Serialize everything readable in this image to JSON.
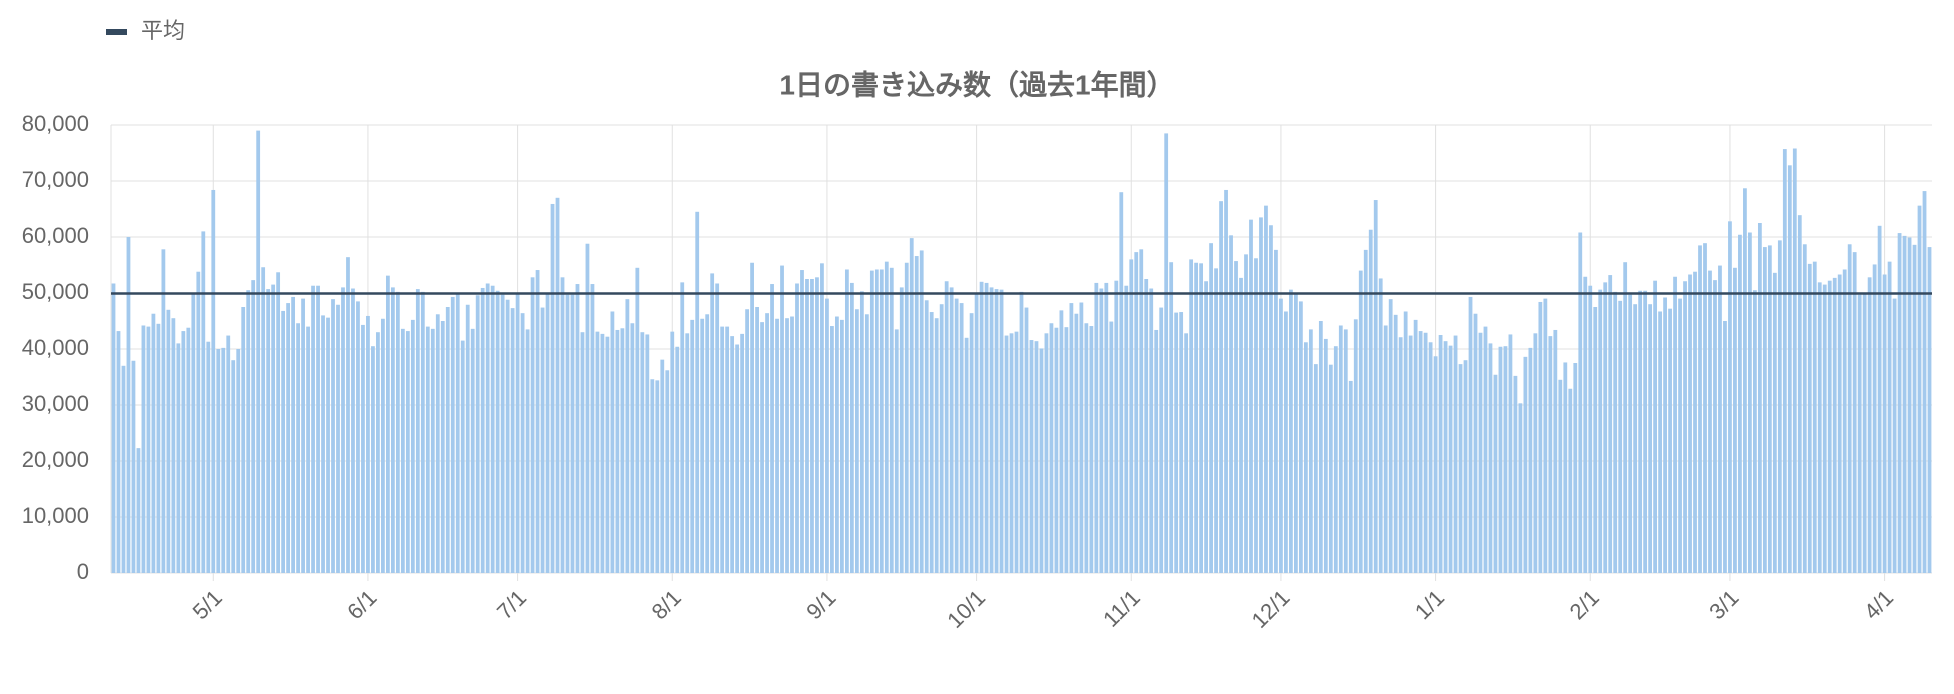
{
  "chart_data": {
    "type": "bar",
    "title": "1日の書き込み数（過去1年間）",
    "categories": [
      null,
      null,
      null,
      null,
      null,
      null,
      null,
      null,
      null,
      null,
      null,
      null,
      null,
      null,
      null,
      null,
      null,
      null,
      null,
      null,
      "5/1",
      null,
      null,
      null,
      null,
      null,
      null,
      null,
      null,
      null,
      null,
      null,
      null,
      null,
      null,
      null,
      null,
      null,
      null,
      null,
      null,
      null,
      null,
      null,
      null,
      null,
      null,
      null,
      null,
      null,
      null,
      "6/1",
      null,
      null,
      null,
      null,
      null,
      null,
      null,
      null,
      null,
      null,
      null,
      null,
      null,
      null,
      null,
      null,
      null,
      null,
      null,
      null,
      null,
      null,
      null,
      null,
      null,
      null,
      null,
      null,
      null,
      "7/1",
      null,
      null,
      null,
      null,
      null,
      null,
      null,
      null,
      null,
      null,
      null,
      null,
      null,
      null,
      null,
      null,
      null,
      null,
      null,
      null,
      null,
      null,
      null,
      null,
      null,
      null,
      null,
      null,
      null,
      null,
      "8/1",
      null,
      null,
      null,
      null,
      null,
      null,
      null,
      null,
      null,
      null,
      null,
      null,
      null,
      null,
      null,
      null,
      null,
      null,
      null,
      null,
      null,
      null,
      null,
      null,
      null,
      null,
      null,
      null,
      null,
      null,
      "9/1",
      null,
      null,
      null,
      null,
      null,
      null,
      null,
      null,
      null,
      null,
      null,
      null,
      null,
      null,
      null,
      null,
      null,
      null,
      null,
      null,
      null,
      null,
      null,
      null,
      null,
      null,
      null,
      null,
      null,
      "10/1",
      null,
      null,
      null,
      null,
      null,
      null,
      null,
      null,
      null,
      null,
      null,
      null,
      null,
      null,
      null,
      null,
      null,
      null,
      null,
      null,
      null,
      null,
      null,
      null,
      null,
      null,
      null,
      null,
      null,
      null,
      "11/1",
      null,
      null,
      null,
      null,
      null,
      null,
      null,
      null,
      null,
      null,
      null,
      null,
      null,
      null,
      null,
      null,
      null,
      null,
      null,
      null,
      null,
      null,
      null,
      null,
      null,
      null,
      null,
      null,
      null,
      "12/1",
      null,
      null,
      null,
      null,
      null,
      null,
      null,
      null,
      null,
      null,
      null,
      null,
      null,
      null,
      null,
      null,
      null,
      null,
      null,
      null,
      null,
      null,
      null,
      null,
      null,
      null,
      null,
      null,
      null,
      null,
      "1/1",
      null,
      null,
      null,
      null,
      null,
      null,
      null,
      null,
      null,
      null,
      null,
      null,
      null,
      null,
      null,
      null,
      null,
      null,
      null,
      null,
      null,
      null,
      null,
      null,
      null,
      null,
      null,
      null,
      null,
      null,
      "2/1",
      null,
      null,
      null,
      null,
      null,
      null,
      null,
      null,
      null,
      null,
      null,
      null,
      null,
      null,
      null,
      null,
      null,
      null,
      null,
      null,
      null,
      null,
      null,
      null,
      null,
      null,
      null,
      "3/1",
      null,
      null,
      null,
      null,
      null,
      null,
      null,
      null,
      null,
      null,
      null,
      null,
      null,
      null,
      null,
      null,
      null,
      null,
      null,
      null,
      null,
      null,
      null,
      null,
      null,
      null,
      null,
      null,
      null,
      null,
      "4/1",
      null,
      null,
      null,
      null,
      null,
      null,
      null,
      null,
      null
    ],
    "values": [
      51700,
      43200,
      37000,
      60000,
      37900,
      22300,
      44200,
      44000,
      46300,
      44500,
      57800,
      47000,
      45500,
      41000,
      43200,
      43800,
      50000,
      53800,
      61000,
      41300,
      68400,
      40000,
      40200,
      42400,
      38000,
      40000,
      47500,
      50500,
      52300,
      79000,
      54600,
      50700,
      51500,
      53700,
      46800,
      48200,
      49300,
      44600,
      49000,
      44000,
      51300,
      51300,
      46000,
      45600,
      48900,
      47900,
      51000,
      56400,
      50800,
      48500,
      44300,
      45900,
      40500,
      43000,
      45400,
      53100,
      51000,
      50200,
      43600,
      43200,
      45200,
      50700,
      50200,
      44000,
      43600,
      46200,
      45000,
      47500,
      49300,
      49800,
      41500,
      47900,
      43600,
      49600,
      50900,
      51700,
      51300,
      50400,
      49700,
      48800,
      47300,
      49900,
      46400,
      43500,
      52800,
      54100,
      47400,
      50000,
      65900,
      67000,
      52800,
      49700,
      49700,
      51600,
      43000,
      58800,
      51600,
      43100,
      42700,
      42200,
      46700,
      43400,
      43700,
      48900,
      44600,
      54500,
      43000,
      42600,
      34600,
      34400,
      38100,
      36200,
      43100,
      40400,
      51900,
      42800,
      45200,
      64500,
      45400,
      46200,
      53500,
      51700,
      44000,
      44000,
      42300,
      40800,
      42700,
      47100,
      55400,
      47500,
      44800,
      46400,
      51600,
      45400,
      54900,
      45500,
      45800,
      51700,
      54100,
      52500,
      52500,
      52800,
      55300,
      49000,
      44100,
      45800,
      45200,
      54200,
      51800,
      47100,
      50300,
      46200,
      54000,
      54200,
      54200,
      55600,
      54500,
      43500,
      51000,
      55400,
      59800,
      56600,
      57600,
      48700,
      46600,
      45500,
      48000,
      52100,
      51000,
      49000,
      48200,
      42000,
      46400,
      49900,
      52000,
      51800,
      51000,
      50700,
      50600,
      42400,
      42800,
      43100,
      50200,
      47400,
      41600,
      41400,
      40100,
      42800,
      44600,
      43800,
      46900,
      43900,
      48200,
      46300,
      48300,
      44600,
      44100,
      51800,
      50800,
      51800,
      44900,
      52200,
      68000,
      51300,
      56000,
      57300,
      57800,
      52500,
      50800,
      43400,
      47400,
      78500,
      55500,
      46500,
      46600,
      42800,
      56000,
      55400,
      55300,
      52100,
      58900,
      54400,
      66400,
      68400,
      60300,
      55700,
      52700,
      56900,
      63100,
      56200,
      63500,
      65600,
      62100,
      57700,
      49000,
      46700,
      50600,
      49800,
      48500,
      41200,
      43500,
      37300,
      45000,
      41800,
      37200,
      40500,
      44200,
      43500,
      34300,
      45300,
      54000,
      57700,
      61300,
      66600,
      52600,
      44200,
      48900,
      46100,
      42100,
      46700,
      42400,
      45200,
      43200,
      42900,
      41200,
      38700,
      42500,
      41400,
      40600,
      42400,
      37300,
      38000,
      49300,
      46300,
      42900,
      44000,
      41000,
      35400,
      40400,
      40500,
      42600,
      35200,
      30300,
      38600,
      40200,
      42800,
      48400,
      49000,
      42300,
      43400,
      34500,
      37600,
      32900,
      37500,
      60800,
      52900,
      51300,
      47500,
      50600,
      51900,
      53200,
      50200,
      48600,
      55500,
      49700,
      48000,
      50400,
      50400,
      48000,
      52200,
      46700,
      49200,
      47200,
      52900,
      49000,
      52100,
      53300,
      53800,
      58500,
      58900,
      54000,
      52300,
      54900,
      45000,
      62800,
      54500,
      60400,
      68700,
      60800,
      50500,
      62500,
      58200,
      58500,
      53600,
      59400,
      75700,
      72800,
      75800,
      63900,
      58700,
      55200,
      55600,
      51900,
      51500,
      52200,
      52700,
      53300,
      54200,
      58700,
      57300,
      49700,
      50000,
      52800,
      55100,
      62000,
      53300,
      55600,
      49000,
      60700,
      60200,
      59900,
      58600,
      65600,
      68200,
      58200
    ],
    "color": "#a3c9ed",
    "average": {
      "name": "平均",
      "value": 49900,
      "color": "#34495e"
    },
    "ylim": [
      0,
      80000
    ],
    "yticks": [
      0,
      {
        "value": 10000,
        "label": "10,000"
      },
      {
        "value": 20000,
        "label": "20,000"
      },
      {
        "value": 30000,
        "label": "30,000"
      },
      {
        "value": 40000,
        "label": "40,000"
      },
      {
        "value": 50000,
        "label": "50,000"
      },
      {
        "value": 60000,
        "label": "60,000"
      },
      {
        "value": 70000,
        "label": "70,000"
      },
      {
        "value": 80000,
        "label": "80,000"
      }
    ],
    "grid": true
  }
}
